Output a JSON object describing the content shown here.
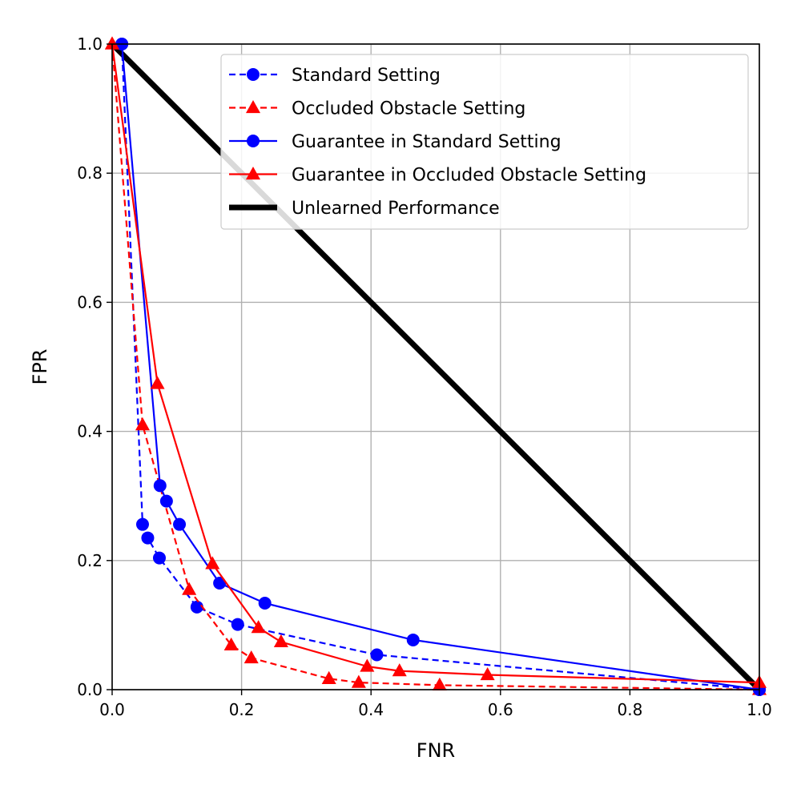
{
  "chart_data": {
    "type": "line",
    "title": "",
    "xlabel": "FNR",
    "ylabel": "FPR",
    "xlim": [
      0.0,
      1.0
    ],
    "ylim": [
      0.0,
      1.0
    ],
    "xticks": [
      "0.0",
      "0.2",
      "0.4",
      "0.6",
      "0.8",
      "1.0"
    ],
    "yticks": [
      "0.0",
      "0.2",
      "0.4",
      "0.6",
      "0.8",
      "1.0"
    ],
    "grid": true,
    "legend_position": "top-right",
    "series": [
      {
        "name": "Standard Setting",
        "color": "#0000ff",
        "line": "dashed",
        "marker": "circle",
        "x": [
          0.015,
          0.047,
          0.055,
          0.073,
          0.131,
          0.194,
          0.409,
          1.0
        ],
        "y": [
          1.0,
          0.256,
          0.235,
          0.204,
          0.128,
          0.101,
          0.054,
          0.0
        ]
      },
      {
        "name": "Occluded Obstacle Setting",
        "color": "#ff0000",
        "line": "dashed",
        "marker": "triangle",
        "x": [
          0.0,
          0.047,
          0.119,
          0.184,
          0.215,
          0.335,
          0.381,
          0.506,
          1.0
        ],
        "y": [
          1.0,
          0.41,
          0.155,
          0.069,
          0.049,
          0.017,
          0.011,
          0.007,
          0.0
        ]
      },
      {
        "name": "Guarantee in Standard Setting",
        "color": "#0000ff",
        "line": "solid",
        "marker": "circle",
        "x": [
          0.015,
          0.074,
          0.084,
          0.104,
          0.166,
          0.236,
          0.465,
          1.0
        ],
        "y": [
          1.0,
          0.316,
          0.292,
          0.256,
          0.165,
          0.134,
          0.077,
          0.0
        ]
      },
      {
        "name": "Guarantee in Occluded Obstacle Setting",
        "color": "#ff0000",
        "line": "solid",
        "marker": "triangle",
        "x": [
          0.0,
          0.07,
          0.155,
          0.226,
          0.261,
          0.394,
          0.444,
          0.58,
          1.0
        ],
        "y": [
          1.0,
          0.474,
          0.195,
          0.096,
          0.074,
          0.036,
          0.029,
          0.023,
          0.011
        ]
      },
      {
        "name": "Unlearned Performance",
        "color": "#000000",
        "line": "solid-thick",
        "marker": "none",
        "x": [
          0.0,
          1.0
        ],
        "y": [
          1.0,
          0.0
        ]
      }
    ]
  }
}
